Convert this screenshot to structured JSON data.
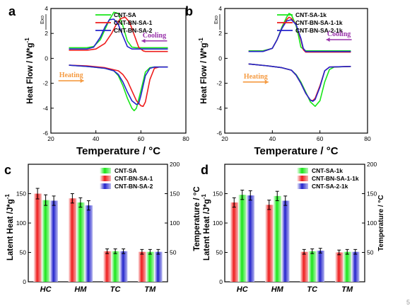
{
  "page_number": "5",
  "colors": {
    "green": "#19e619",
    "red": "#ee1c1c",
    "blue": "#2424cc",
    "purple": "#9933aa",
    "orange": "#f59b42"
  },
  "chart_data": [
    {
      "panel": "a",
      "type": "line",
      "xlabel": "Temperature / °C",
      "ylabel": "Heat Flow / W*g",
      "ylabel_sup": "-1",
      "exo_label": "Exo",
      "xlim": [
        20,
        80
      ],
      "ylim": [
        -6,
        4
      ],
      "xticks": [
        20,
        40,
        60,
        80
      ],
      "yticks": [
        -6,
        -4,
        -2,
        0,
        2,
        4
      ],
      "legend_position": "top-right",
      "annotations": [
        {
          "text": "Cooling",
          "color": "#9933aa",
          "arrow": "left",
          "x": 66,
          "y": 1.4
        },
        {
          "text": "Heating",
          "color": "#f59b42",
          "arrow": "right",
          "x": 29,
          "y": -1.8
        }
      ],
      "series": [
        {
          "name": "CNT-SA",
          "color": "#19e619",
          "x": [
            28,
            36,
            39,
            42,
            44,
            46,
            48,
            50,
            52,
            54,
            56,
            58,
            62,
            72
          ],
          "y": [
            0.85,
            0.85,
            0.95,
            1.5,
            2.3,
            3.1,
            3.7,
            3.6,
            2.6,
            1.4,
            0.9,
            0.85,
            0.85,
            0.85
          ]
        },
        {
          "name": "CNT-BN-SA-1",
          "color": "#ee1c1c",
          "x": [
            28,
            36,
            40,
            44,
            47,
            49,
            51,
            53,
            55,
            57,
            59,
            61,
            62,
            64,
            72
          ],
          "y": [
            0.65,
            0.65,
            0.75,
            1.2,
            2.0,
            2.7,
            3.2,
            3.3,
            2.9,
            1.9,
            0.9,
            0.6,
            0.55,
            0.55,
            0.55
          ]
        },
        {
          "name": "CNT-BN-SA-2",
          "color": "#2424cc",
          "x": [
            28,
            36,
            39,
            42,
            44,
            46,
            48,
            50,
            52,
            54,
            56,
            62,
            72
          ],
          "y": [
            0.75,
            0.75,
            0.9,
            1.7,
            2.5,
            3.1,
            3.15,
            2.7,
            1.8,
            0.95,
            0.75,
            0.75,
            0.75
          ]
        },
        {
          "name": "CNT-SA",
          "color": "#19e619",
          "x": [
            28,
            36,
            44,
            48,
            50,
            52,
            54,
            56,
            57,
            58,
            60,
            62,
            64,
            66,
            72
          ],
          "y": [
            -0.55,
            -0.65,
            -0.8,
            -1.0,
            -1.4,
            -2.2,
            -3.2,
            -4.0,
            -4.2,
            -4.0,
            -2.6,
            -1.1,
            -0.75,
            -0.7,
            -0.7
          ]
        },
        {
          "name": "CNT-BN-SA-1",
          "color": "#ee1c1c",
          "x": [
            28,
            36,
            44,
            50,
            52,
            54,
            56,
            58,
            60,
            61,
            62,
            64,
            66,
            68,
            72
          ],
          "y": [
            -0.55,
            -0.6,
            -0.75,
            -1.0,
            -1.3,
            -1.8,
            -2.6,
            -3.4,
            -3.8,
            -3.85,
            -3.5,
            -1.7,
            -0.8,
            -0.7,
            -0.7
          ]
        },
        {
          "name": "CNT-BN-SA-2",
          "color": "#2424cc",
          "x": [
            28,
            36,
            44,
            48,
            50,
            52,
            54,
            56,
            58,
            59,
            60,
            62,
            64,
            66,
            72
          ],
          "y": [
            -0.55,
            -0.65,
            -0.8,
            -1.0,
            -1.3,
            -1.9,
            -2.7,
            -3.4,
            -3.7,
            -3.65,
            -3.0,
            -1.4,
            -0.8,
            -0.7,
            -0.7
          ]
        }
      ]
    },
    {
      "panel": "b",
      "type": "line",
      "xlabel": "Temperature / °C",
      "ylabel": "Heat Flow / W*g",
      "ylabel_sup": "-1",
      "exo_label": "Exo",
      "xlim": [
        20,
        80
      ],
      "ylim": [
        -6,
        4
      ],
      "xticks": [
        20,
        40,
        60,
        80
      ],
      "yticks": [
        -6,
        -4,
        -2,
        0,
        2,
        4
      ],
      "legend_position": "top-right",
      "annotations": [
        {
          "text": "Cooling",
          "color": "#9933aa",
          "arrow": "left",
          "x": 68,
          "y": 1.5
        },
        {
          "text": "Heating",
          "color": "#f59b42",
          "arrow": "right",
          "x": 33,
          "y": -1.9
        }
      ],
      "series": [
        {
          "name": "CNT-SA-1k",
          "color": "#19e619",
          "x": [
            30,
            36,
            40,
            42,
            44,
            46,
            47,
            48,
            50,
            51,
            52,
            54,
            60,
            73
          ],
          "y": [
            0.6,
            0.6,
            0.8,
            1.5,
            2.5,
            3.3,
            3.6,
            3.5,
            2.6,
            1.8,
            0.9,
            0.6,
            0.6,
            0.6
          ]
        },
        {
          "name": "CNT-BN-SA-1-1k",
          "color": "#ee1c1c",
          "x": [
            30,
            36,
            40,
            42,
            44,
            46,
            47,
            48,
            50,
            52,
            53,
            54,
            60,
            73
          ],
          "y": [
            0.55,
            0.55,
            0.8,
            1.5,
            2.4,
            3.1,
            3.3,
            3.2,
            2.7,
            1.5,
            0.7,
            0.5,
            0.5,
            0.5
          ]
        },
        {
          "name": "CNT-BN-SA-2-1k",
          "color": "#2424cc",
          "x": [
            30,
            36,
            40,
            42,
            44,
            46,
            48,
            50,
            52,
            53,
            54,
            60,
            73
          ],
          "y": [
            0.55,
            0.55,
            0.8,
            1.5,
            2.4,
            3.0,
            3.1,
            2.7,
            1.6,
            0.8,
            0.55,
            0.55,
            0.55
          ]
        },
        {
          "name": "CNT-SA-1k",
          "color": "#19e619",
          "x": [
            30,
            38,
            44,
            48,
            50,
            52,
            54,
            56,
            58,
            60,
            62,
            64,
            66,
            73
          ],
          "y": [
            -0.45,
            -0.6,
            -0.75,
            -0.95,
            -1.3,
            -1.9,
            -2.7,
            -3.5,
            -3.85,
            -3.4,
            -1.9,
            -0.9,
            -0.7,
            -0.65
          ]
        },
        {
          "name": "CNT-BN-SA-1-1k",
          "color": "#ee1c1c",
          "x": [
            30,
            38,
            44,
            48,
            50,
            52,
            54,
            56,
            57,
            58,
            60,
            62,
            64,
            73
          ],
          "y": [
            -0.45,
            -0.6,
            -0.75,
            -0.95,
            -1.35,
            -2.0,
            -2.8,
            -3.35,
            -3.4,
            -3.2,
            -2.2,
            -1.0,
            -0.7,
            -0.65
          ]
        },
        {
          "name": "CNT-BN-SA-2-1k",
          "color": "#2424cc",
          "x": [
            30,
            38,
            44,
            48,
            50,
            52,
            54,
            56,
            57,
            58,
            60,
            62,
            64,
            73
          ],
          "y": [
            -0.45,
            -0.6,
            -0.75,
            -0.95,
            -1.35,
            -2.0,
            -2.8,
            -3.35,
            -3.45,
            -3.3,
            -2.3,
            -1.0,
            -0.7,
            -0.65
          ]
        }
      ]
    },
    {
      "panel": "c",
      "type": "bar",
      "categories": [
        "HC",
        "HM",
        "TC",
        "TM"
      ],
      "ylabel": "Latent Heat  /J*g",
      "ylabel_sup": "-1",
      "y2label": "",
      "ylim": [
        0,
        200
      ],
      "yticks": [
        0,
        50,
        100,
        150
      ],
      "y2lim": [
        0,
        200
      ],
      "y2ticks": [
        50,
        100,
        150,
        200
      ],
      "legend_position": "top-right",
      "series": [
        {
          "name": "CNT-SA",
          "color": "#19e619",
          "values": [
            139,
            135,
            52,
            51
          ],
          "errors": [
            9,
            8,
            4,
            4
          ]
        },
        {
          "name": "CNT-BN-SA-1",
          "color": "#ee1c1c",
          "values": [
            150,
            142,
            52,
            51
          ],
          "errors": [
            9,
            8,
            4,
            4
          ]
        },
        {
          "name": "CNT-BN-SA-2",
          "color": "#2424cc",
          "values": [
            138,
            130,
            52,
            51
          ],
          "errors": [
            8,
            8,
            4,
            4
          ]
        }
      ],
      "bar_order": [
        "CNT-BN-SA-1",
        "CNT-SA",
        "CNT-BN-SA-2"
      ]
    },
    {
      "panel": "d",
      "type": "bar",
      "categories": [
        "HC",
        "HM",
        "TC",
        "TM"
      ],
      "ylabel": "Latent Heat  /J*g",
      "ylabel_sup": "-1",
      "ylabel_overlay": "Temperature / °C",
      "y2label": "Temperature / °C",
      "ylim": [
        0,
        200
      ],
      "yticks": [
        0,
        50,
        100,
        150
      ],
      "y2lim": [
        0,
        200
      ],
      "y2ticks": [
        50,
        100,
        150,
        200
      ],
      "legend_position": "top-right",
      "series": [
        {
          "name": "CNT-SA-1k",
          "color": "#19e619",
          "values": [
            148,
            146,
            52,
            51
          ],
          "errors": [
            8,
            8,
            4,
            4
          ]
        },
        {
          "name": "CNT-BN-SA-1-1k",
          "color": "#ee1c1c",
          "values": [
            135,
            131,
            51,
            50
          ],
          "errors": [
            8,
            8,
            4,
            4
          ]
        },
        {
          "name": "CNT-SA-2-1k",
          "color": "#2424cc",
          "values": [
            147,
            138,
            53,
            51
          ],
          "errors": [
            8,
            8,
            4,
            4
          ]
        }
      ],
      "bar_order": [
        "CNT-BN-SA-1-1k",
        "CNT-SA-1k",
        "CNT-SA-2-1k"
      ]
    }
  ]
}
